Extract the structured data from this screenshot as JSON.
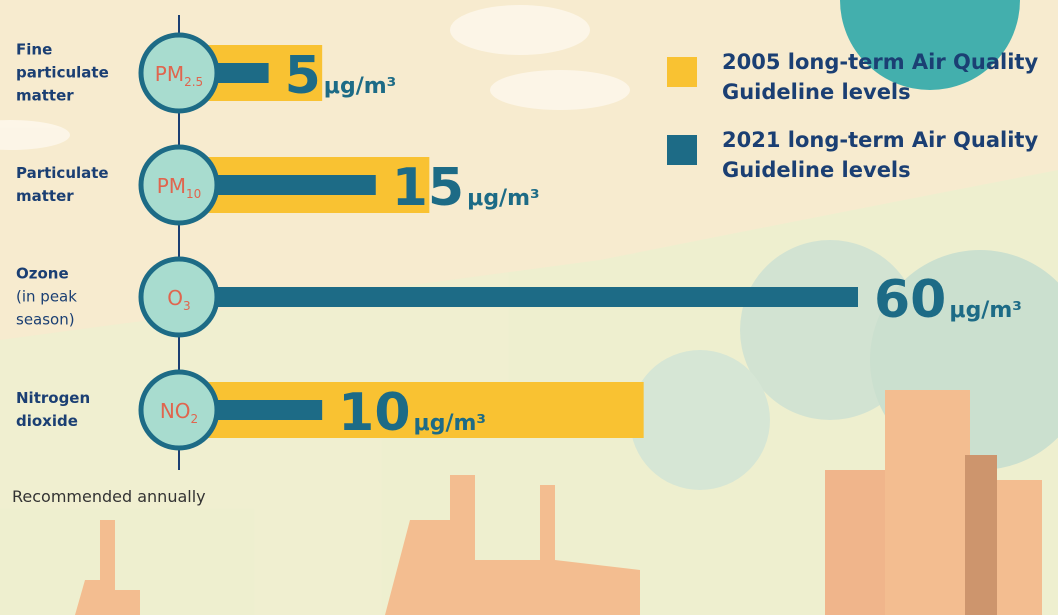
{
  "chart_data": {
    "type": "bar",
    "categories": [
      "Fine particulate matter",
      "Particulate matter",
      "Ozone",
      "Nitrogen dioxide"
    ],
    "category_notes": {
      "2": "(in peak season)"
    },
    "symbols": [
      [
        "PM",
        "2.5"
      ],
      [
        "PM",
        "10"
      ],
      [
        "O",
        "3"
      ],
      [
        "NO",
        "2"
      ]
    ],
    "unit": "μg/m³",
    "series": [
      {
        "name": "2005 long-term Air Quality Guideline levels",
        "color": "#f9c232",
        "values": [
          10,
          20,
          null,
          40
        ]
      },
      {
        "name": "2021 long-term Air Quality Guideline levels",
        "color": "#1d6b86",
        "values": [
          5,
          15,
          60,
          10
        ]
      }
    ],
    "footnote": "Recommended annually"
  }
}
